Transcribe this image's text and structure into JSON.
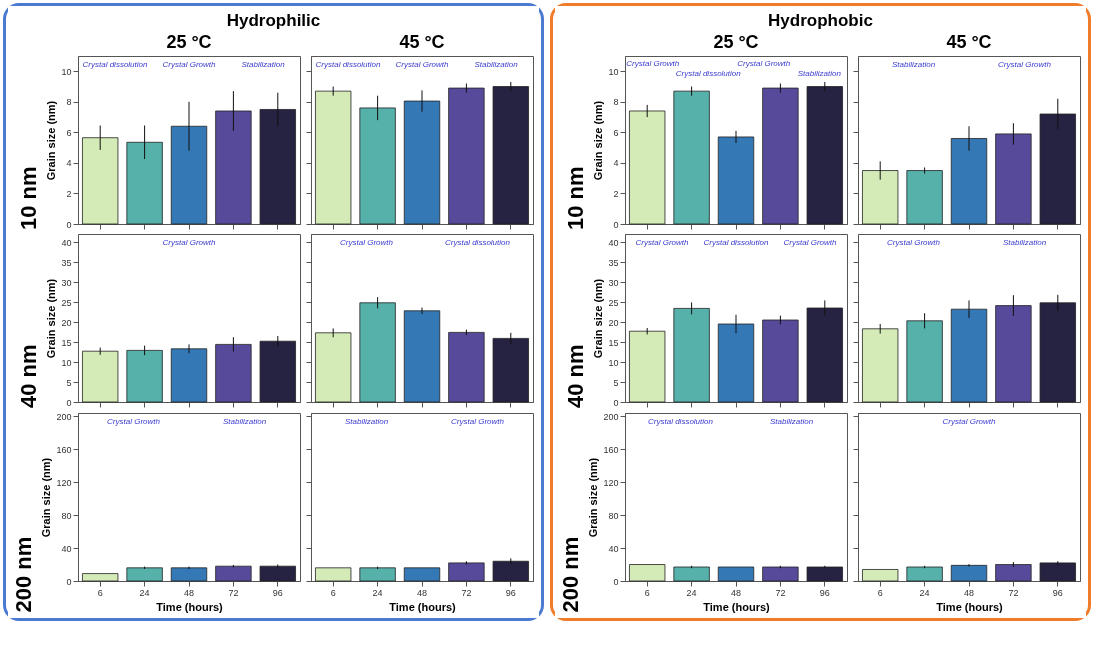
{
  "chart_data": [
    {
      "type": "bar",
      "title": "Hydrophilic",
      "subtitle": "25 °C",
      "ylabel": "Grain size (nm)",
      "categories": [
        "6",
        "24",
        "48",
        "72",
        "96"
      ],
      "values": [
        5.65,
        5.35,
        6.4,
        7.4,
        7.5
      ],
      "errors": [
        0.8,
        1.1,
        1.6,
        1.3,
        1.1
      ],
      "colors": [
        "#d4ebb8",
        "#56b1aa",
        "#3479b5",
        "#584a9a",
        "#262241"
      ],
      "ylim": [
        0,
        11
      ],
      "yticks": [
        0,
        2,
        4,
        6,
        8,
        10
      ],
      "tick_labels": "y",
      "annotations": [
        "10 nm",
        "Crystal dissolution",
        "Crystal Growth",
        "Stabilization"
      ]
    },
    {
      "type": "bar",
      "subtitle": "45 °C",
      "categories": [
        "6",
        "24",
        "48",
        "72",
        "96"
      ],
      "values": [
        8.7,
        7.6,
        8.05,
        8.9,
        9.0
      ],
      "errors": [
        0.3,
        0.8,
        0.7,
        0.3,
        0.3
      ],
      "colors": [
        "#d4ebb8",
        "#56b1aa",
        "#3479b5",
        "#584a9a",
        "#262241"
      ],
      "ylim": [
        0,
        11
      ],
      "yticks": [
        0,
        2,
        4,
        6,
        8,
        10
      ],
      "tick_labels": false,
      "annotations": [
        "Crystal dissolution",
        "Crystal Growth",
        "Stabilization"
      ]
    },
    {
      "type": "bar",
      "ylabel": "Grain size (nm)",
      "categories": [
        "6",
        "24",
        "48",
        "72",
        "96"
      ],
      "values": [
        12.7,
        12.9,
        13.3,
        14.4,
        15.2
      ],
      "errors": [
        0.9,
        1.2,
        1.1,
        1.8,
        1.3
      ],
      "colors": [
        "#d4ebb8",
        "#56b1aa",
        "#3479b5",
        "#584a9a",
        "#262241"
      ],
      "ylim": [
        0,
        42
      ],
      "yticks": [
        0,
        5,
        10,
        15,
        20,
        25,
        30,
        35,
        40
      ],
      "tick_labels": "y",
      "annotations": [
        "40 nm",
        "Crystal Growth"
      ]
    },
    {
      "type": "bar",
      "categories": [
        "6",
        "24",
        "48",
        "72",
        "96"
      ],
      "values": [
        17.3,
        24.8,
        22.8,
        17.4,
        15.9
      ],
      "errors": [
        1.1,
        1.4,
        0.8,
        0.7,
        1.4
      ],
      "colors": [
        "#d4ebb8",
        "#56b1aa",
        "#3479b5",
        "#584a9a",
        "#262241"
      ],
      "ylim": [
        0,
        42
      ],
      "yticks": [
        0,
        5,
        10,
        15,
        20,
        25,
        30,
        35,
        40
      ],
      "tick_labels": false,
      "annotations": [
        "Crystal Growth",
        "Crystal dissolution"
      ]
    },
    {
      "type": "bar",
      "xlabel": "Time (hours)",
      "ylabel": "Grain size (nm)",
      "categories": [
        "6",
        "24",
        "48",
        "72",
        "96"
      ],
      "values": [
        9,
        16,
        16,
        18,
        18
      ],
      "errors": [
        null,
        1.5,
        1.5,
        1.5,
        2
      ],
      "colors": [
        "#d4ebb8",
        "#56b1aa",
        "#3479b5",
        "#584a9a",
        "#262241"
      ],
      "ylim": [
        0,
        204
      ],
      "yticks": [
        0,
        40,
        80,
        120,
        160,
        200
      ],
      "annotations": [
        "200 nm",
        "Crystal Growth",
        "Stabilization"
      ]
    },
    {
      "type": "bar",
      "xlabel": "Time (hours)",
      "categories": [
        "6",
        "24",
        "48",
        "72",
        "96"
      ],
      "values": [
        16,
        16,
        16,
        22,
        24
      ],
      "errors": [
        null,
        1.5,
        null,
        2,
        3.5
      ],
      "colors": [
        "#d4ebb8",
        "#56b1aa",
        "#3479b5",
        "#584a9a",
        "#262241"
      ],
      "ylim": [
        0,
        204
      ],
      "yticks": [
        0,
        40,
        80,
        120,
        160,
        200
      ],
      "tick_labels": "x",
      "annotations": [
        "Stabilization",
        "Crystal Growth"
      ]
    },
    {
      "type": "bar",
      "title": "Hydrophobic",
      "subtitle": "25 °C",
      "ylabel": "Grain size (nm)",
      "categories": [
        "6",
        "24",
        "48",
        "72",
        "96"
      ],
      "values": [
        7.4,
        8.7,
        5.7,
        8.9,
        9.0
      ],
      "errors": [
        0.4,
        0.3,
        0.4,
        0.3,
        0.3
      ],
      "colors": [
        "#d4ebb8",
        "#56b1aa",
        "#3479b5",
        "#584a9a",
        "#262241"
      ],
      "ylim": [
        0,
        11
      ],
      "yticks": [
        0,
        2,
        4,
        6,
        8,
        10
      ],
      "tick_labels": "y",
      "annotations": [
        "10 nm",
        "Crystal Growth",
        "Crystal dissolution",
        "Crystal Growth",
        "Stabilization"
      ]
    },
    {
      "type": "bar",
      "subtitle": "45 °C",
      "categories": [
        "6",
        "24",
        "48",
        "72",
        "96"
      ],
      "values": [
        3.5,
        3.5,
        5.6,
        5.9,
        7.2
      ],
      "errors": [
        0.6,
        0.2,
        0.8,
        0.7,
        1.0
      ],
      "colors": [
        "#d4ebb8",
        "#56b1aa",
        "#3479b5",
        "#584a9a",
        "#262241"
      ],
      "ylim": [
        0,
        11
      ],
      "yticks": [
        0,
        2,
        4,
        6,
        8,
        10
      ],
      "tick_labels": false,
      "annotations": [
        "Stabilization",
        "Crystal Growth"
      ]
    },
    {
      "type": "bar",
      "ylabel": "Grain size (nm)",
      "categories": [
        "6",
        "24",
        "48",
        "72",
        "96"
      ],
      "values": [
        17.7,
        23.4,
        19.5,
        20.5,
        23.5
      ],
      "errors": [
        0.8,
        1.5,
        2.3,
        1.1,
        1.9
      ],
      "colors": [
        "#d4ebb8",
        "#56b1aa",
        "#3479b5",
        "#584a9a",
        "#262241"
      ],
      "ylim": [
        0,
        42
      ],
      "yticks": [
        0,
        5,
        10,
        15,
        20,
        25,
        30,
        35,
        40
      ],
      "tick_labels": "y",
      "annotations": [
        "40 nm",
        "Crystal Growth",
        "Crystal dissolution",
        "Crystal Growth"
      ]
    },
    {
      "type": "bar",
      "categories": [
        "6",
        "24",
        "48",
        "72",
        "96"
      ],
      "values": [
        18.3,
        20.3,
        23.2,
        24.1,
        24.8
      ],
      "errors": [
        1.2,
        1.9,
        2.2,
        2.6,
        2.0
      ],
      "colors": [
        "#d4ebb8",
        "#56b1aa",
        "#3479b5",
        "#584a9a",
        "#262241"
      ],
      "ylim": [
        0,
        42
      ],
      "yticks": [
        0,
        5,
        10,
        15,
        20,
        25,
        30,
        35,
        40
      ],
      "tick_labels": false,
      "annotations": [
        "Crystal Growth",
        "Stabilization"
      ]
    },
    {
      "type": "bar",
      "xlabel": "Time (hours)",
      "ylabel": "Grain size (nm)",
      "categories": [
        "6",
        "24",
        "48",
        "72",
        "96"
      ],
      "values": [
        20,
        17,
        17,
        17,
        17
      ],
      "errors": [
        null,
        1.5,
        null,
        1.5,
        1.5
      ],
      "colors": [
        "#d4ebb8",
        "#56b1aa",
        "#3479b5",
        "#584a9a",
        "#262241"
      ],
      "ylim": [
        0,
        204
      ],
      "yticks": [
        0,
        40,
        80,
        120,
        160,
        200
      ],
      "annotations": [
        "200 nm",
        "Crystal dissolution",
        "Stabilization"
      ]
    },
    {
      "type": "bar",
      "xlabel": "Time (hours)",
      "categories": [
        "6",
        "24",
        "48",
        "72",
        "96"
      ],
      "values": [
        14,
        17,
        19,
        20,
        22
      ],
      "errors": [
        null,
        1.5,
        1.5,
        3,
        2
      ],
      "colors": [
        "#d4ebb8",
        "#56b1aa",
        "#3479b5",
        "#584a9a",
        "#262241"
      ],
      "ylim": [
        0,
        204
      ],
      "yticks": [
        0,
        40,
        80,
        120,
        160,
        200
      ],
      "tick_labels": "x",
      "annotations": [
        "Crystal Growth"
      ]
    }
  ]
}
